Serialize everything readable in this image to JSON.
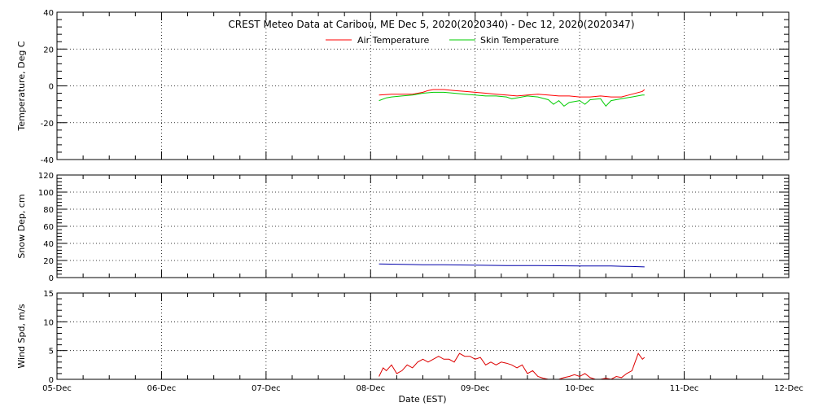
{
  "chart_data": {
    "type": "line",
    "title": "CREST Meteo Data at Caribou, ME   Dec  5, 2020(2020340) - Dec 12, 2020(2020347)",
    "xlabel": "Date (EST)",
    "x_tick_labels": [
      "05-Dec",
      "06-Dec",
      "07-Dec",
      "08-Dec",
      "09-Dec",
      "10-Dec",
      "11-Dec",
      "12-Dec"
    ],
    "x_range_days": [
      0,
      7
    ],
    "grid": true,
    "legend_placement": "top-center",
    "panels": [
      {
        "ylabel": "Temperature, Deg C",
        "ylim": [
          -40,
          40
        ],
        "yticks": [
          -40,
          -20,
          0,
          20,
          40
        ],
        "series": [
          {
            "name": "Air Temperature",
            "color": "#ff0000",
            "x": [
              3.08,
              3.2,
              3.3,
              3.4,
              3.5,
              3.55,
              3.6,
              3.7,
              3.8,
              3.9,
              4.0,
              4.1,
              4.2,
              4.3,
              4.4,
              4.5,
              4.6,
              4.7,
              4.8,
              4.9,
              5.0,
              5.1,
              5.2,
              5.3,
              5.4,
              5.5,
              5.6,
              5.62
            ],
            "values": [
              -5,
              -4.5,
              -4.5,
              -4.5,
              -3.5,
              -2.5,
              -2,
              -2,
              -2.5,
              -3,
              -3.5,
              -4,
              -4.5,
              -5,
              -5.5,
              -5,
              -4.5,
              -5,
              -5.5,
              -5.5,
              -6,
              -6,
              -5.5,
              -6,
              -6,
              -4.5,
              -3,
              -2
            ]
          },
          {
            "name": "Skin Temperature",
            "color": "#00cc00",
            "x": [
              3.08,
              3.15,
              3.2,
              3.3,
              3.4,
              3.5,
              3.6,
              3.7,
              3.8,
              3.9,
              4.0,
              4.1,
              4.2,
              4.3,
              4.35,
              4.4,
              4.5,
              4.6,
              4.7,
              4.75,
              4.8,
              4.85,
              4.9,
              5.0,
              5.05,
              5.1,
              5.2,
              5.25,
              5.3,
              5.4,
              5.5,
              5.6,
              5.62
            ],
            "values": [
              -8,
              -6.5,
              -6,
              -5.5,
              -5,
              -4,
              -3.5,
              -3.5,
              -4,
              -4.5,
              -5,
              -5.5,
              -5.5,
              -6,
              -7,
              -6.5,
              -5.5,
              -6,
              -7.5,
              -10,
              -8,
              -11,
              -9,
              -8,
              -10,
              -7.5,
              -7,
              -11,
              -8,
              -7,
              -6,
              -5,
              -5
            ]
          }
        ]
      },
      {
        "ylabel": "Snow Dep, cm",
        "ylim": [
          0,
          120
        ],
        "yticks": [
          0,
          20,
          40,
          60,
          80,
          100,
          120
        ],
        "series": [
          {
            "name": "Snow Depth",
            "color": "#0000aa",
            "x": [
              3.08,
              3.3,
              3.5,
              3.7,
              4.0,
              4.3,
              4.6,
              5.0,
              5.3,
              5.5,
              5.62
            ],
            "values": [
              16,
              15.5,
              15,
              15,
              14.5,
              14,
              14,
              13.5,
              13.5,
              13,
              12.5
            ]
          }
        ]
      },
      {
        "ylabel": "Wind Spd, m/s",
        "ylim": [
          0,
          15
        ],
        "yticks": [
          0,
          5,
          10,
          15
        ],
        "series": [
          {
            "name": "Wind Speed",
            "color": "#dd0000",
            "x": [
              3.08,
              3.12,
              3.15,
              3.2,
              3.25,
              3.3,
              3.35,
              3.4,
              3.45,
              3.5,
              3.55,
              3.6,
              3.65,
              3.7,
              3.75,
              3.8,
              3.85,
              3.9,
              3.95,
              4.0,
              4.05,
              4.1,
              4.15,
              4.2,
              4.25,
              4.3,
              4.35,
              4.4,
              4.45,
              4.5,
              4.55,
              4.6,
              4.65,
              4.7,
              4.75,
              4.8,
              4.85,
              4.9,
              4.95,
              5.0,
              5.05,
              5.1,
              5.15,
              5.2,
              5.25,
              5.3,
              5.35,
              5.4,
              5.45,
              5.5,
              5.53,
              5.56,
              5.6,
              5.62
            ],
            "values": [
              0.5,
              2,
              1.5,
              2.5,
              1,
              1.5,
              2.5,
              2,
              3,
              3.5,
              3,
              3.5,
              4,
              3.5,
              3.5,
              3,
              4.5,
              4,
              4,
              3.5,
              3.8,
              2.5,
              3,
              2.5,
              3,
              2.8,
              2.5,
              2,
              2.5,
              1,
              1.5,
              0.5,
              0.2,
              0,
              0,
              0,
              0.3,
              0.5,
              0.8,
              0.5,
              1,
              0.3,
              0,
              0,
              0.2,
              0,
              0.5,
              0.3,
              1,
              1.5,
              3,
              4.5,
              3.5,
              3.8
            ]
          }
        ]
      }
    ]
  }
}
